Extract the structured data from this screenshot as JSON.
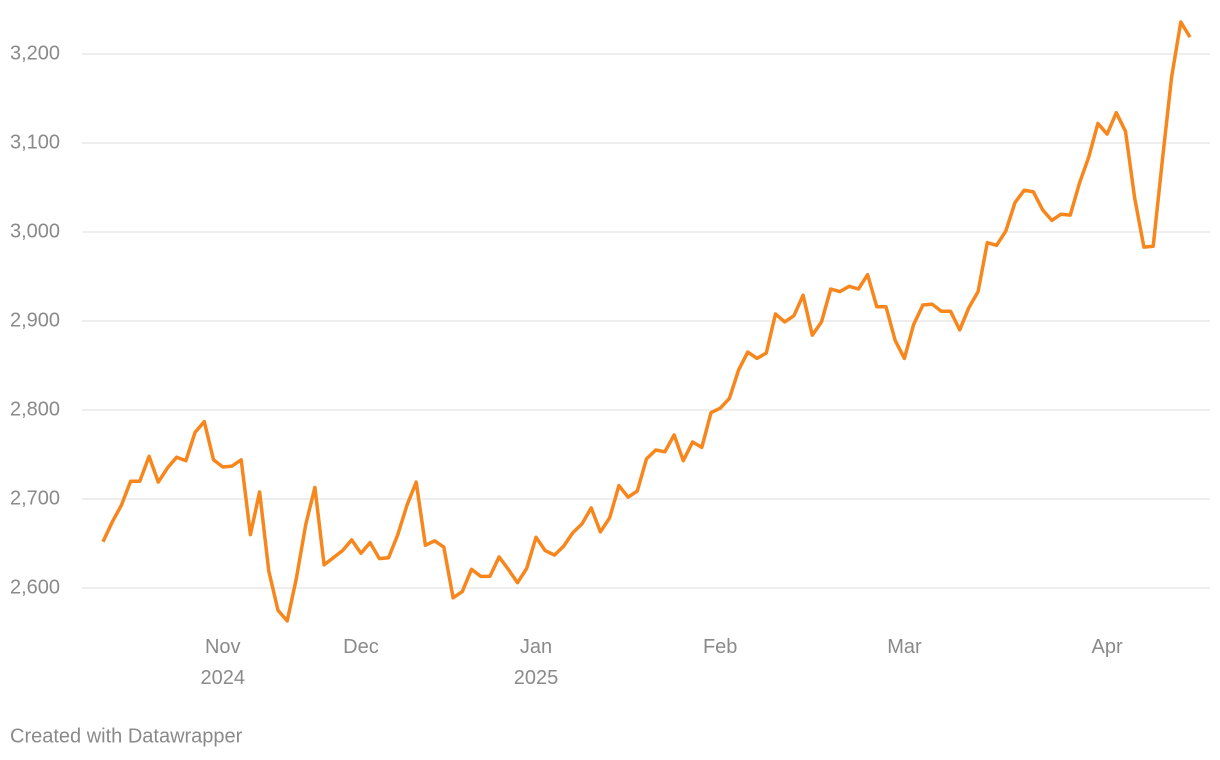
{
  "chart_data": {
    "type": "line",
    "categories": [
      null,
      null,
      null,
      null,
      null,
      null,
      null,
      null,
      null,
      null,
      null,
      null,
      null,
      "Nov 2024",
      null,
      null,
      null,
      null,
      null,
      null,
      null,
      null,
      null,
      null,
      null,
      null,
      null,
      null,
      "Dec",
      null,
      null,
      null,
      null,
      null,
      null,
      null,
      null,
      null,
      null,
      null,
      null,
      null,
      null,
      null,
      null,
      null,
      null,
      "Jan 2025",
      null,
      null,
      null,
      null,
      null,
      null,
      null,
      null,
      null,
      null,
      null,
      null,
      null,
      null,
      null,
      null,
      null,
      null,
      null,
      "Feb",
      null,
      null,
      null,
      null,
      null,
      null,
      null,
      null,
      null,
      null,
      null,
      null,
      null,
      null,
      null,
      null,
      null,
      null,
      null,
      "Mar",
      null,
      null,
      null,
      null,
      null,
      null,
      null,
      null,
      null,
      null,
      null,
      null,
      null,
      null,
      null,
      null,
      null,
      null,
      null,
      null,
      null,
      "Apr",
      null,
      null,
      null,
      null,
      null,
      null,
      null,
      null,
      null
    ],
    "series": [
      {
        "color": "#f7861d",
        "values": [
          2652,
          2674,
          2693,
          2720,
          2720,
          2748,
          2719,
          2735,
          2747,
          2743,
          2775,
          2787,
          2744,
          2736,
          2737,
          2744,
          2660,
          2708,
          2619,
          2575,
          2563,
          2611,
          2671,
          2713,
          2626,
          2634,
          2642,
          2654,
          2639,
          2651,
          2633,
          2634,
          2660,
          2693,
          2719,
          2648,
          2653,
          2646,
          2589,
          2596,
          2621,
          2613,
          2613,
          2635,
          2621,
          2606,
          2622,
          2657,
          2642,
          2637,
          2647,
          2662,
          2672,
          2690,
          2663,
          2679,
          2715,
          2702,
          2709,
          2745,
          2755,
          2753,
          2772,
          2743,
          2764,
          2758,
          2797,
          2802,
          2813,
          2845,
          2865,
          2858,
          2864,
          2908,
          2899,
          2906,
          2929,
          2884,
          2899,
          2936,
          2933,
          2939,
          2936,
          2952,
          2916,
          2916,
          2878,
          2858,
          2896,
          2918,
          2919,
          2911,
          2911,
          2890,
          2915,
          2933,
          2988,
          2985,
          3001,
          3033,
          3047,
          3045,
          3025,
          3013,
          3020,
          3019,
          3055,
          3084,
          3122,
          3110,
          3134,
          3113,
          3038,
          2983,
          2984,
          3081,
          3174,
          3236,
          3219
        ]
      }
    ],
    "ylim": [
      2550,
      3250
    ],
    "yticks": [
      {
        "value": 2600,
        "label": "2,600"
      },
      {
        "value": 2700,
        "label": "2,700"
      },
      {
        "value": 2800,
        "label": "2,800"
      },
      {
        "value": 2900,
        "label": "2,900"
      },
      {
        "value": 3000,
        "label": "3,000"
      },
      {
        "value": 3100,
        "label": "3,100"
      },
      {
        "value": 3200,
        "label": "3,200"
      }
    ],
    "grid": true
  },
  "footer": "Created with Datawrapper"
}
